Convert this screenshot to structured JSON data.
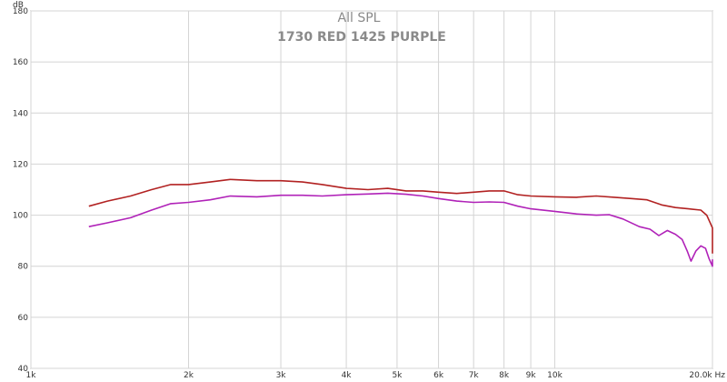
{
  "chart_data": {
    "type": "line",
    "title": "All SPL",
    "subtitle": "1730 RED 1425 PURPLE",
    "ylabel": "dB",
    "xlabel": "Hz",
    "x_scale": "log",
    "xlim": [
      1000,
      20000
    ],
    "ylim": [
      40,
      180
    ],
    "grid": true,
    "x_ticks": [
      {
        "value": 1000,
        "label": "1k"
      },
      {
        "value": 2000,
        "label": "2k"
      },
      {
        "value": 3000,
        "label": "3k"
      },
      {
        "value": 4000,
        "label": "4k"
      },
      {
        "value": 5000,
        "label": "5k"
      },
      {
        "value": 6000,
        "label": "6k"
      },
      {
        "value": 7000,
        "label": "7k"
      },
      {
        "value": 8000,
        "label": "8k"
      },
      {
        "value": 9000,
        "label": "9k"
      },
      {
        "value": 10000,
        "label": "10k"
      },
      {
        "value": 20000,
        "label": "20.0k Hz"
      }
    ],
    "y_ticks": [
      {
        "value": 40,
        "label": "40"
      },
      {
        "value": 60,
        "label": "60"
      },
      {
        "value": 80,
        "label": "80"
      },
      {
        "value": 100,
        "label": "100"
      },
      {
        "value": 120,
        "label": "120"
      },
      {
        "value": 140,
        "label": "140"
      },
      {
        "value": 160,
        "label": "160"
      },
      {
        "value": 180,
        "label": "180"
      }
    ],
    "series": [
      {
        "color": "#b22222",
        "points": [
          [
            1290,
            103.5
          ],
          [
            1400,
            105.5
          ],
          [
            1550,
            107.5
          ],
          [
            1700,
            110
          ],
          [
            1850,
            112
          ],
          [
            2000,
            112
          ],
          [
            2200,
            113
          ],
          [
            2400,
            114
          ],
          [
            2700,
            113.5
          ],
          [
            3000,
            113.5
          ],
          [
            3300,
            113
          ],
          [
            3600,
            112
          ],
          [
            4000,
            110.5
          ],
          [
            4400,
            110
          ],
          [
            4800,
            110.5
          ],
          [
            5200,
            109.5
          ],
          [
            5600,
            109.5
          ],
          [
            6000,
            109
          ],
          [
            6500,
            108.5
          ],
          [
            7000,
            109
          ],
          [
            7500,
            109.5
          ],
          [
            8000,
            109.5
          ],
          [
            8500,
            108
          ],
          [
            9000,
            107.5
          ],
          [
            10000,
            107.2
          ],
          [
            11000,
            107
          ],
          [
            12000,
            107.5
          ],
          [
            13000,
            107
          ],
          [
            14000,
            106.5
          ],
          [
            15000,
            106
          ],
          [
            16000,
            104
          ],
          [
            17000,
            103
          ],
          [
            18000,
            102.5
          ],
          [
            19000,
            102
          ],
          [
            19500,
            100
          ],
          [
            20000,
            95
          ],
          [
            20600,
            87
          ],
          [
            21000,
            85
          ]
        ]
      },
      {
        "color": "#b022b8",
        "points": [
          [
            1290,
            95.5
          ],
          [
            1400,
            97
          ],
          [
            1550,
            99
          ],
          [
            1700,
            102
          ],
          [
            1850,
            104.5
          ],
          [
            2000,
            105
          ],
          [
            2200,
            106
          ],
          [
            2400,
            107.5
          ],
          [
            2700,
            107.2
          ],
          [
            3000,
            107.8
          ],
          [
            3300,
            107.8
          ],
          [
            3600,
            107.5
          ],
          [
            4000,
            108
          ],
          [
            4400,
            108.3
          ],
          [
            4800,
            108.6
          ],
          [
            5200,
            108.2
          ],
          [
            5600,
            107.5
          ],
          [
            6000,
            106.5
          ],
          [
            6500,
            105.5
          ],
          [
            7000,
            105
          ],
          [
            7500,
            105.2
          ],
          [
            8000,
            105
          ],
          [
            8500,
            103.5
          ],
          [
            9000,
            102.5
          ],
          [
            10000,
            101.5
          ],
          [
            11000,
            100.5
          ],
          [
            12000,
            100
          ],
          [
            12700,
            100.2
          ],
          [
            13500,
            98.5
          ],
          [
            14500,
            95.5
          ],
          [
            15200,
            94.5
          ],
          [
            15800,
            92
          ],
          [
            16400,
            94
          ],
          [
            17000,
            92.5
          ],
          [
            17500,
            90.5
          ],
          [
            17900,
            86
          ],
          [
            18200,
            82
          ],
          [
            18600,
            86
          ],
          [
            19000,
            88
          ],
          [
            19400,
            87
          ],
          [
            19700,
            83
          ],
          [
            20000,
            80
          ],
          [
            20300,
            80.5
          ],
          [
            20600,
            82.5
          ],
          [
            21000,
            82
          ]
        ]
      }
    ]
  }
}
